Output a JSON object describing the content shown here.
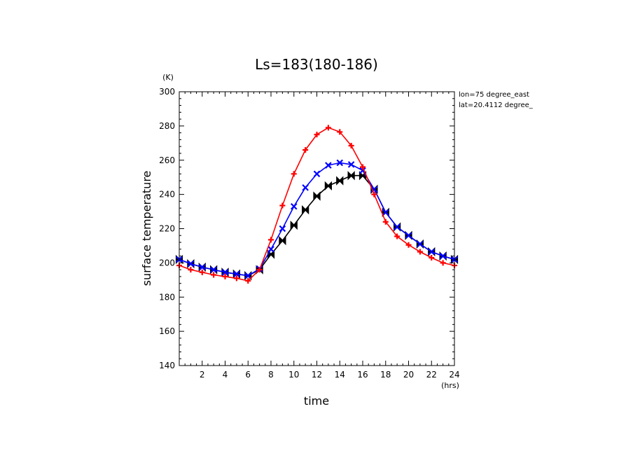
{
  "chart_data": {
    "type": "line",
    "title": "Ls=183(180-186)",
    "xlabel": "time",
    "ylabel": "surface temperature",
    "xunit": "(hrs)",
    "yunit": "(K)",
    "xlim": [
      0,
      24
    ],
    "ylim": [
      140,
      300
    ],
    "xticks": [
      "2",
      "4",
      "6",
      "8",
      "10",
      "12",
      "14",
      "16",
      "18",
      "20",
      "22",
      "24"
    ],
    "yticks": [
      "140",
      "160",
      "180",
      "200",
      "220",
      "240",
      "260",
      "280",
      "300"
    ],
    "info": [
      "lon=75 degree_east",
      "lat=20.4112 degree_"
    ],
    "grid": false,
    "x": [
      0,
      1,
      2,
      3,
      4,
      5,
      6,
      7,
      8,
      9,
      10,
      11,
      12,
      13,
      14,
      15,
      16,
      17,
      18,
      19,
      20,
      21,
      22,
      23,
      24
    ],
    "series": [
      {
        "color": "#000000",
        "marker": "bowtie",
        "values": [
          202,
          199.5,
          197.5,
          196,
          194.5,
          193.5,
          192.5,
          196,
          205,
          213,
          222,
          231,
          239,
          245,
          248,
          251,
          251,
          243,
          229.5,
          221,
          216,
          211,
          206.5,
          204,
          202
        ]
      },
      {
        "color": "#0000ff",
        "marker": "x",
        "values": [
          202,
          199.5,
          197.5,
          196,
          194.5,
          193.5,
          192.5,
          196.5,
          208,
          220,
          233,
          244,
          252,
          257,
          258.5,
          257.5,
          254,
          243,
          229.5,
          221,
          216,
          211,
          206.5,
          204,
          202
        ]
      },
      {
        "color": "#ff0000",
        "marker": "plus",
        "values": [
          198.5,
          196,
          194.5,
          193,
          192,
          191,
          189.5,
          196,
          213.5,
          233.5,
          252,
          266,
          275,
          279,
          276.5,
          268.5,
          256,
          240,
          224,
          215.5,
          210.5,
          206.5,
          203,
          200,
          198.5
        ]
      }
    ]
  }
}
